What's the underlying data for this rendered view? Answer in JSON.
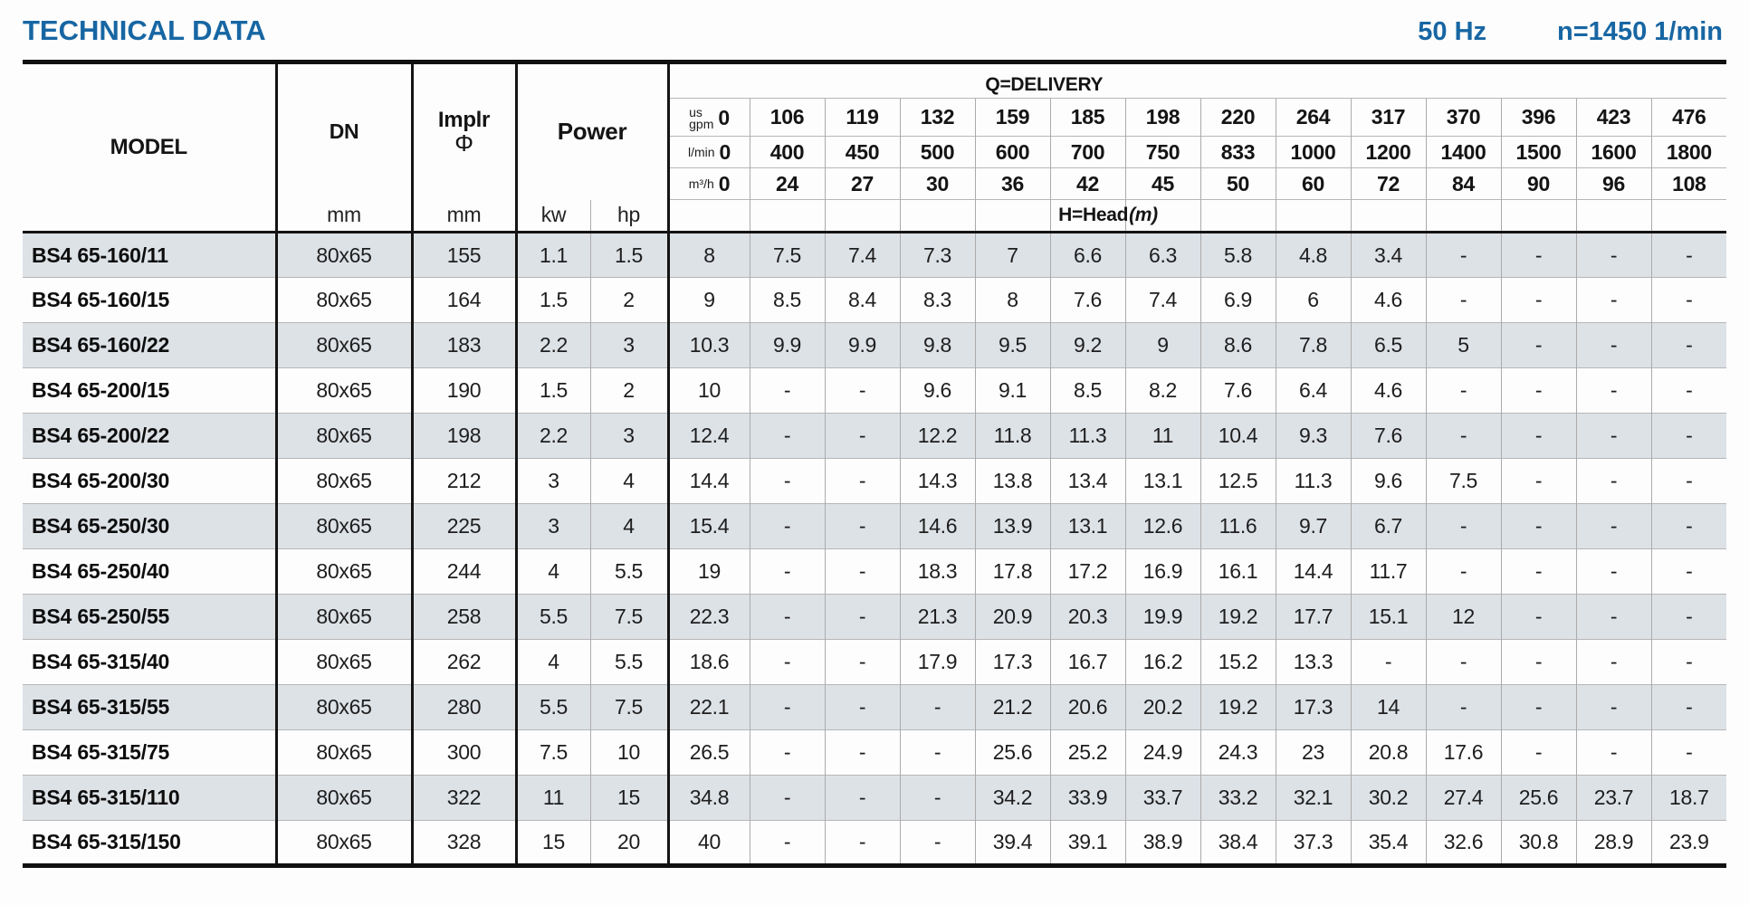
{
  "header": {
    "title": "TECHNICAL DATA",
    "frequency": "50 Hz",
    "speed": "n=1450 1/min"
  },
  "table": {
    "columns": {
      "model": "MODEL",
      "dn": "DN",
      "implr_line1": "Implr",
      "implr_line2": "Φ",
      "power": "Power",
      "unit_mm": "mm",
      "unit_kw": "kw",
      "unit_hp": "hp"
    },
    "delivery_header": {
      "label": "Q=DELIVERY",
      "head_label": "H=Head",
      "head_unit": "(m)",
      "gpm_unit_top": "us",
      "gpm_unit": "gpm",
      "lmin_unit": "l/min",
      "m3h_unit": "m³/h",
      "gpm": [
        "0",
        "106",
        "119",
        "132",
        "159",
        "185",
        "198",
        "220",
        "264",
        "317",
        "370",
        "396",
        "423",
        "476"
      ],
      "lmin": [
        "0",
        "400",
        "450",
        "500",
        "600",
        "700",
        "750",
        "833",
        "1000",
        "1200",
        "1400",
        "1500",
        "1600",
        "1800"
      ],
      "m3h": [
        "0",
        "24",
        "27",
        "30",
        "36",
        "42",
        "45",
        "50",
        "60",
        "72",
        "84",
        "90",
        "96",
        "108"
      ]
    },
    "rows": [
      {
        "model": "BS4 65-160/11",
        "dn": "80x65",
        "implr": "155",
        "kw": "1.1",
        "hp": "1.5",
        "head": [
          "8",
          "7.5",
          "7.4",
          "7.3",
          "7",
          "6.6",
          "6.3",
          "5.8",
          "4.8",
          "3.4",
          "-",
          "-",
          "-",
          "-"
        ]
      },
      {
        "model": "BS4 65-160/15",
        "dn": "80x65",
        "implr": "164",
        "kw": "1.5",
        "hp": "2",
        "head": [
          "9",
          "8.5",
          "8.4",
          "8.3",
          "8",
          "7.6",
          "7.4",
          "6.9",
          "6",
          "4.6",
          "-",
          "-",
          "-",
          "-"
        ]
      },
      {
        "model": "BS4 65-160/22",
        "dn": "80x65",
        "implr": "183",
        "kw": "2.2",
        "hp": "3",
        "head": [
          "10.3",
          "9.9",
          "9.9",
          "9.8",
          "9.5",
          "9.2",
          "9",
          "8.6",
          "7.8",
          "6.5",
          "5",
          "-",
          "-",
          "-"
        ]
      },
      {
        "model": "BS4 65-200/15",
        "dn": "80x65",
        "implr": "190",
        "kw": "1.5",
        "hp": "2",
        "head": [
          "10",
          "-",
          "-",
          "9.6",
          "9.1",
          "8.5",
          "8.2",
          "7.6",
          "6.4",
          "4.6",
          "-",
          "-",
          "-",
          "-"
        ]
      },
      {
        "model": "BS4 65-200/22",
        "dn": "80x65",
        "implr": "198",
        "kw": "2.2",
        "hp": "3",
        "head": [
          "12.4",
          "-",
          "-",
          "12.2",
          "11.8",
          "11.3",
          "11",
          "10.4",
          "9.3",
          "7.6",
          "-",
          "-",
          "-",
          "-"
        ]
      },
      {
        "model": "BS4 65-200/30",
        "dn": "80x65",
        "implr": "212",
        "kw": "3",
        "hp": "4",
        "head": [
          "14.4",
          "-",
          "-",
          "14.3",
          "13.8",
          "13.4",
          "13.1",
          "12.5",
          "11.3",
          "9.6",
          "7.5",
          "-",
          "-",
          "-"
        ]
      },
      {
        "model": "BS4 65-250/30",
        "dn": "80x65",
        "implr": "225",
        "kw": "3",
        "hp": "4",
        "head": [
          "15.4",
          "-",
          "-",
          "14.6",
          "13.9",
          "13.1",
          "12.6",
          "11.6",
          "9.7",
          "6.7",
          "-",
          "-",
          "-",
          "-"
        ]
      },
      {
        "model": "BS4 65-250/40",
        "dn": "80x65",
        "implr": "244",
        "kw": "4",
        "hp": "5.5",
        "head": [
          "19",
          "-",
          "-",
          "18.3",
          "17.8",
          "17.2",
          "16.9",
          "16.1",
          "14.4",
          "11.7",
          "-",
          "-",
          "-",
          "-"
        ]
      },
      {
        "model": "BS4 65-250/55",
        "dn": "80x65",
        "implr": "258",
        "kw": "5.5",
        "hp": "7.5",
        "head": [
          "22.3",
          "-",
          "-",
          "21.3",
          "20.9",
          "20.3",
          "19.9",
          "19.2",
          "17.7",
          "15.1",
          "12",
          "-",
          "-",
          "-"
        ]
      },
      {
        "model": "BS4 65-315/40",
        "dn": "80x65",
        "implr": "262",
        "kw": "4",
        "hp": "5.5",
        "head": [
          "18.6",
          "-",
          "-",
          "17.9",
          "17.3",
          "16.7",
          "16.2",
          "15.2",
          "13.3",
          "-",
          "-",
          "-",
          "-",
          "-"
        ]
      },
      {
        "model": "BS4 65-315/55",
        "dn": "80x65",
        "implr": "280",
        "kw": "5.5",
        "hp": "7.5",
        "head": [
          "22.1",
          "-",
          "-",
          "-",
          "21.2",
          "20.6",
          "20.2",
          "19.2",
          "17.3",
          "14",
          "-",
          "-",
          "-",
          "-"
        ]
      },
      {
        "model": "BS4 65-315/75",
        "dn": "80x65",
        "implr": "300",
        "kw": "7.5",
        "hp": "10",
        "head": [
          "26.5",
          "-",
          "-",
          "-",
          "25.6",
          "25.2",
          "24.9",
          "24.3",
          "23",
          "20.8",
          "17.6",
          "-",
          "-",
          "-"
        ]
      },
      {
        "model": "BS4 65-315/110",
        "dn": "80x65",
        "implr": "322",
        "kw": "11",
        "hp": "15",
        "head": [
          "34.8",
          "-",
          "-",
          "-",
          "34.2",
          "33.9",
          "33.7",
          "33.2",
          "32.1",
          "30.2",
          "27.4",
          "25.6",
          "23.7",
          "18.7"
        ]
      },
      {
        "model": "BS4 65-315/150",
        "dn": "80x65",
        "implr": "328",
        "kw": "15",
        "hp": "20",
        "head": [
          "40",
          "-",
          "-",
          "-",
          "39.4",
          "39.1",
          "38.9",
          "38.4",
          "37.3",
          "35.4",
          "32.6",
          "30.8",
          "28.9",
          "23.9"
        ]
      }
    ]
  },
  "colors": {
    "accent_blue": "#1766a3",
    "row_shade": "#dde2e7",
    "grid_thin": "#ababab",
    "grid_thick": "#141414"
  }
}
